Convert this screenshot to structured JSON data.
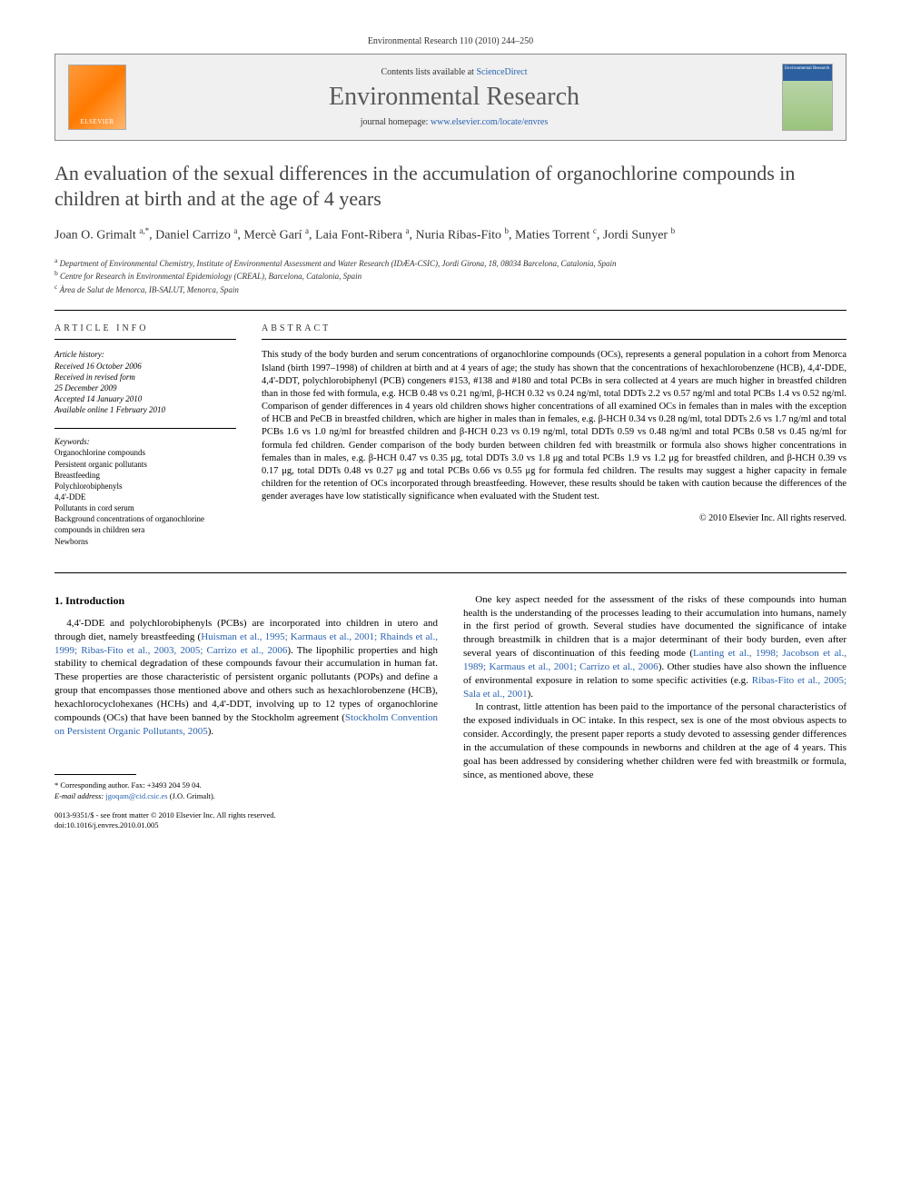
{
  "running_head": "Environmental Research 110 (2010) 244–250",
  "header": {
    "publisher_logo_text": "ELSEVIER",
    "contents_prefix": "Contents lists available at ",
    "contents_link": "ScienceDirect",
    "journal_name": "Environmental Research",
    "homepage_prefix": "journal homepage: ",
    "homepage_link": "www.elsevier.com/locate/envres",
    "cover_title": "Environmental Research"
  },
  "title": "An evaluation of the sexual differences in the accumulation of organochlorine compounds in children at birth and at the age of 4 years",
  "authors_html": "Joan O. Grimalt <sup>a,*</sup>, Daniel Carrizo <sup>a</sup>, Mercè Garí <sup>a</sup>, Laia Font-Ribera <sup>a</sup>, Nuria Ribas-Fito <sup>b</sup>, Maties Torrent <sup>c</sup>, Jordi Sunyer <sup>b</sup>",
  "affiliations": [
    {
      "sup": "a",
      "text": "Department of Environmental Chemistry, Institute of Environmental Assessment and Water Research (IDÆA-CSIC), Jordi Girona, 18, 08034 Barcelona, Catalonia, Spain"
    },
    {
      "sup": "b",
      "text": "Centre for Research in Environmental Epidemiology (CREAL), Barcelona, Catalonia, Spain"
    },
    {
      "sup": "c",
      "text": "Àrea de Salut de Menorca, IB-SALUT, Menorca, Spain"
    }
  ],
  "info_head": "ARTICLE INFO",
  "abs_head": "ABSTRACT",
  "history": {
    "label": "Article history:",
    "received": "Received 16 October 2006",
    "revised": "Received in revised form",
    "revised_date": "25 December 2009",
    "accepted": "Accepted 14 January 2010",
    "online": "Available online 1 February 2010"
  },
  "keywords": {
    "label": "Keywords:",
    "items": [
      "Organochlorine compounds",
      "Persistent organic pollutants",
      "Breastfeeding",
      "Polychlorobiphenyls",
      "4,4'-DDE",
      "Pollutants in cord serum",
      "Background concentrations of organochlorine compounds in children sera",
      "Newborns"
    ]
  },
  "abstract": "This study of the body burden and serum concentrations of organochlorine compounds (OCs), represents a general population in a cohort from Menorca Island (birth 1997–1998) of children at birth and at 4 years of age; the study has shown that the concentrations of hexachlorobenzene (HCB), 4,4'-DDE, 4,4'-DDT, polychlorobiphenyl (PCB) congeners #153, #138 and #180 and total PCBs in sera collected at 4 years are much higher in breastfed children than in those fed with formula, e.g. HCB 0.48 vs 0.21 ng/ml, β-HCH 0.32 vs 0.24 ng/ml, total DDTs 2.2 vs 0.57 ng/ml and total PCBs 1.4 vs 0.52 ng/ml. Comparison of gender differences in 4 years old children shows higher concentrations of all examined OCs in females than in males with the exception of HCB and PeCB in breastfed children, which are higher in males than in females, e.g. β-HCH 0.34 vs 0.28 ng/ml, total DDTs 2.6 vs 1.7 ng/ml and total PCBs 1.6 vs 1.0 ng/ml for breastfed children and β-HCH 0.23 vs 0.19 ng/ml, total DDTs 0.59 vs 0.48 ng/ml and total PCBs 0.58 vs 0.45 ng/ml for formula fed children. Gender comparison of the body burden between children fed with breastmilk or formula also shows higher concentrations in females than in males, e.g. β-HCH 0.47 vs 0.35 μg, total DDTs 3.0 vs 1.8 μg and total PCBs 1.9 vs 1.2 μg for breastfed children, and β-HCH 0.39 vs 0.17 μg, total DDTs 0.48 vs 0.27 μg and total PCBs 0.66 vs 0.55 μg for formula fed children. The results may suggest a higher capacity in female children for the retention of OCs incorporated through breastfeeding. However, these results should be taken with caution because the differences of the gender averages have low statistically significance when evaluated with the Student test.",
  "copyright": "© 2010 Elsevier Inc. All rights reserved.",
  "section1": {
    "heading": "1. Introduction",
    "p1_pre": "4,4'-DDE and polychlorobiphenyls (PCBs) are incorporated into children in utero and through diet, namely breastfeeding (",
    "p1_refs": "Huisman et al., 1995; Karmaus et al., 2001; Rhainds et al., 1999; Ribas-Fito et al., 2003, 2005; Carrizo et al., 2006",
    "p1_post": "). The lipophilic properties and high stability to chemical degradation of these compounds favour their accumulation in human fat. These properties are those characteristic of persistent organic pollutants (POPs) and define a group that encompasses those mentioned above and others such as hexachlorobenzene (HCB), hexachlorocyclohexanes (HCHs) and 4,4'-DDT, involving up to 12 types of organochlorine compounds (OCs) that have been banned by the Stockholm agreement (",
    "p1_ref2": "Stockholm Convention on Persistent Organic Pollutants, 2005",
    "p1_end": ")."
  },
  "col2": {
    "p1_pre": "One key aspect needed for the assessment of the risks of these compounds into human health is the understanding of the processes leading to their accumulation into humans, namely in the first period of growth. Several studies have documented the significance of intake through breastmilk in children that is a major determinant of their body burden, even after several years of discontinuation of this feeding mode (",
    "p1_refs": "Lanting et al., 1998; Jacobson et al., 1989; Karmaus et al., 2001; Carrizo et al., 2006",
    "p1_mid": "). Other studies have also shown the influence of environmental exposure in relation to some specific activities (e.g. ",
    "p1_refs2": "Ribas-Fito et al., 2005; Sala et al., 2001",
    "p1_end": ").",
    "p2": "In contrast, little attention has been paid to the importance of the personal characteristics of the exposed individuals in OC intake. In this respect, sex is one of the most obvious aspects to consider. Accordingly, the present paper reports a study devoted to assessing gender differences in the accumulation of these compounds in newborns and children at the age of 4 years. This goal has been addressed by considering whether children were fed with breastmilk or formula, since, as mentioned above, these"
  },
  "footnote": {
    "corr": "* Corresponding author. Fax: +3493 204 59 04.",
    "email_lbl": "E-mail address: ",
    "email": "jgoqam@cid.csic.es",
    "email_who": " (J.O. Grimalt)."
  },
  "footer": {
    "line1": "0013-9351/$ - see front matter © 2010 Elsevier Inc. All rights reserved.",
    "line2": "doi:10.1016/j.envres.2010.01.005"
  },
  "colors": {
    "link": "#2a63b0",
    "logo_gradient_start": "#ff9a3c",
    "logo_gradient_end": "#ffb870",
    "cover_blue": "#2c5f9e",
    "cover_green": "#9bc47e",
    "border": "#888888"
  }
}
